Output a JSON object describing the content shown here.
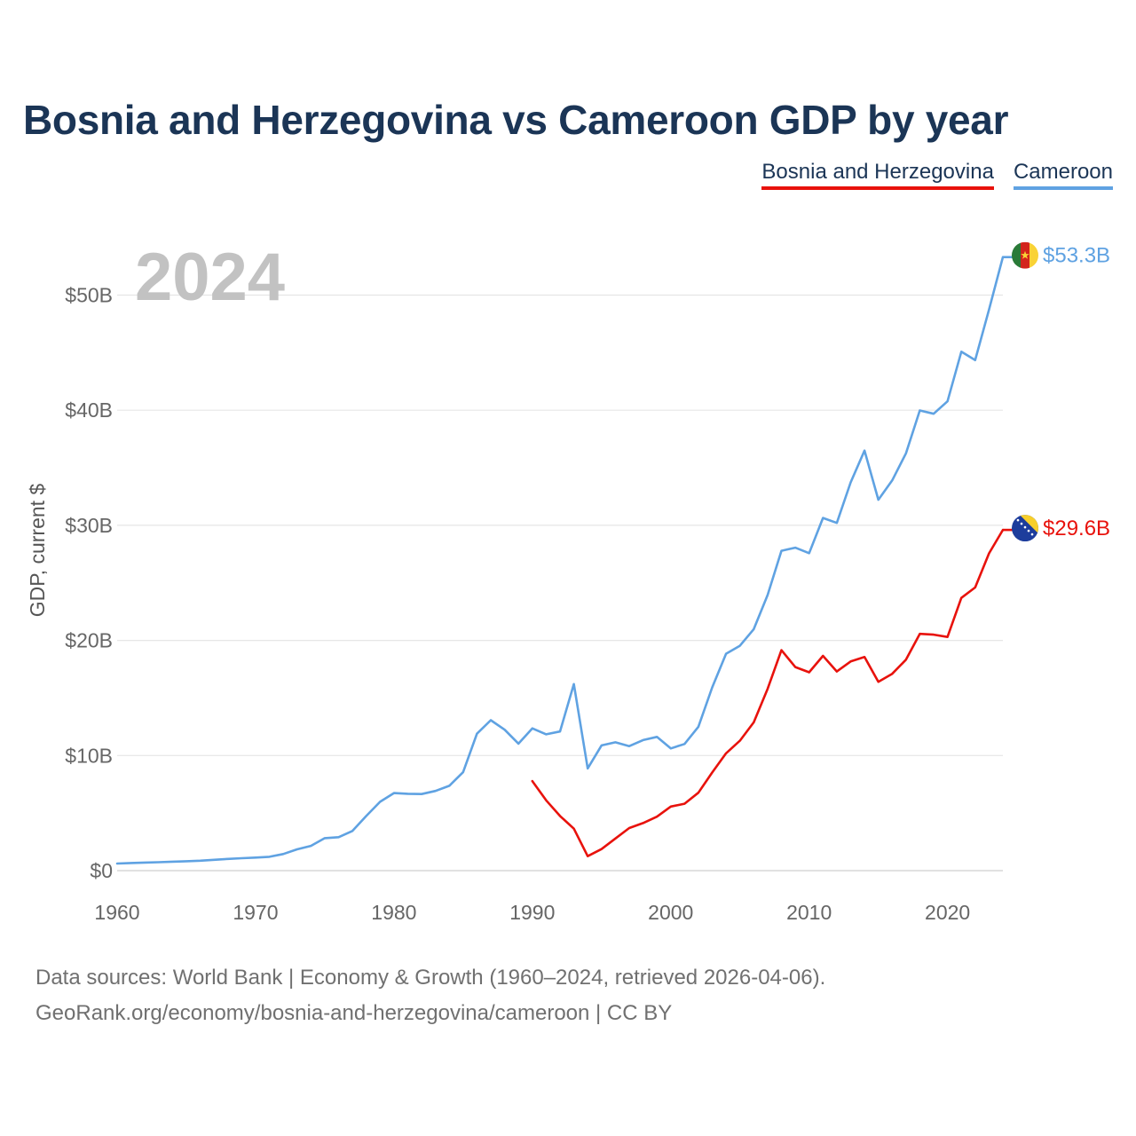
{
  "title": "Bosnia and Herzegovina vs Cameroon GDP by year",
  "legend": {
    "bih_label": "Bosnia and Herzegovina",
    "cmr_label": "Cameroon"
  },
  "colors": {
    "bih": "#e8120c",
    "cmr": "#5fa2e2",
    "title": "#1b3556"
  },
  "year_label": "2024",
  "end_labels": {
    "cmr": "$53.3B",
    "bih": "$29.6B"
  },
  "footer": {
    "line1": "Data sources: World Bank | Economy & Growth (1960–2024, retrieved 2026-04-06).",
    "line2": "GeoRank.org/economy/bosnia-and-herzegovina/cameroon | CC BY"
  },
  "chart_data": {
    "type": "line",
    "title": "Bosnia and Herzegovina vs Cameroon GDP by year",
    "xlabel": "",
    "ylabel": "GDP, current $",
    "xlim": [
      1960,
      2024
    ],
    "ylim": [
      0,
      55
    ],
    "x_ticks": [
      1960,
      1970,
      1980,
      1990,
      2000,
      2010,
      2020
    ],
    "x_tick_labels": [
      "1960",
      "1970",
      "1980",
      "1990",
      "2000",
      "2010",
      "2020"
    ],
    "y_ticks": [
      0,
      10,
      20,
      30,
      40,
      50
    ],
    "y_tick_labels": [
      "$0",
      "$10B",
      "$20B",
      "$30B",
      "$40B",
      "$50B"
    ],
    "grid": true,
    "legend_position": "top-right",
    "series": [
      {
        "name": "Cameroon",
        "key": "cmr",
        "x": [
          1960,
          1961,
          1962,
          1963,
          1964,
          1965,
          1966,
          1967,
          1968,
          1969,
          1970,
          1971,
          1972,
          1973,
          1974,
          1975,
          1976,
          1977,
          1978,
          1979,
          1980,
          1981,
          1982,
          1983,
          1984,
          1985,
          1986,
          1987,
          1988,
          1989,
          1990,
          1991,
          1992,
          1993,
          1994,
          1995,
          1996,
          1997,
          1998,
          1999,
          2000,
          2001,
          2002,
          2003,
          2004,
          2005,
          2006,
          2007,
          2008,
          2009,
          2010,
          2011,
          2012,
          2013,
          2014,
          2015,
          2016,
          2017,
          2018,
          2019,
          2020,
          2021,
          2022,
          2023,
          2024
        ],
        "values": [
          0.62,
          0.66,
          0.7,
          0.73,
          0.78,
          0.82,
          0.86,
          0.94,
          1.02,
          1.08,
          1.13,
          1.2,
          1.44,
          1.85,
          2.15,
          2.82,
          2.91,
          3.45,
          4.75,
          5.98,
          6.74,
          6.68,
          6.65,
          6.92,
          7.37,
          8.55,
          11.9,
          13.07,
          12.24,
          11.03,
          12.36,
          11.84,
          12.09,
          16.21,
          8.88,
          10.88,
          11.15,
          10.82,
          11.34,
          11.62,
          10.62,
          11.0,
          12.5,
          15.92,
          18.84,
          19.54,
          20.98,
          23.94,
          27.79,
          28.06,
          27.58,
          30.64,
          30.21,
          33.73,
          36.49,
          32.22,
          33.9,
          36.25,
          39.98,
          39.69,
          40.77,
          45.08,
          44.36,
          48.74,
          53.3
        ]
      },
      {
        "name": "Bosnia and Herzegovina",
        "key": "bih",
        "x": [
          1990,
          1991,
          1992,
          1993,
          1994,
          1995,
          1996,
          1997,
          1998,
          1999,
          2000,
          2001,
          2002,
          2003,
          2004,
          2005,
          2006,
          2007,
          2008,
          2009,
          2010,
          2011,
          2012,
          2013,
          2014,
          2015,
          2016,
          2017,
          2018,
          2019,
          2020,
          2021,
          2022,
          2023,
          2024
        ],
        "values": [
          7.78,
          6.11,
          4.75,
          3.65,
          1.26,
          1.87,
          2.79,
          3.7,
          4.13,
          4.69,
          5.57,
          5.81,
          6.77,
          8.53,
          10.19,
          11.29,
          12.88,
          15.79,
          19.15,
          17.69,
          17.23,
          18.66,
          17.3,
          18.17,
          18.56,
          16.4,
          17.1,
          18.33,
          20.57,
          20.5,
          20.3,
          23.69,
          24.6,
          27.56,
          29.6
        ]
      }
    ]
  }
}
